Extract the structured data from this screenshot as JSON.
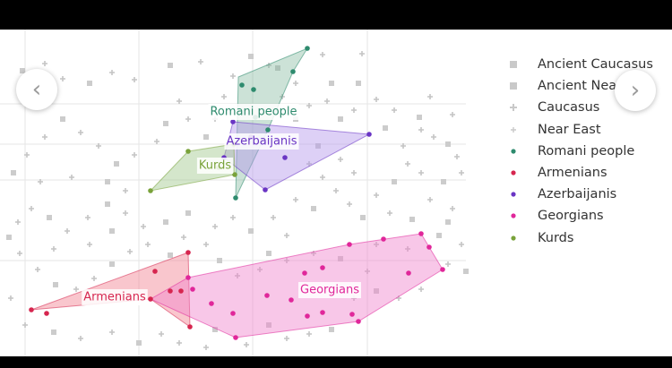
{
  "nav": {
    "prev_icon": "‹",
    "next_icon": "›"
  },
  "legend": [
    {
      "label": "Ancient Caucasus",
      "marker": "square",
      "color": "#c9c9c9"
    },
    {
      "label": "Ancient Near East",
      "marker": "square",
      "color": "#c9c9c9"
    },
    {
      "label": "Caucasus",
      "marker": "diamond",
      "color": "#c9c9c9"
    },
    {
      "label": "Near East",
      "marker": "cross",
      "color": "#c9c9c9"
    },
    {
      "label": "Romani people",
      "marker": "circle",
      "color": "#2e8b6e"
    },
    {
      "label": "Armenians",
      "marker": "circle",
      "color": "#d6264f"
    },
    {
      "label": "Azerbaijanis",
      "marker": "circle",
      "color": "#6a35c4"
    },
    {
      "label": "Georgians",
      "marker": "circle",
      "color": "#e0279a"
    },
    {
      "label": "Kurds",
      "marker": "circle",
      "color": "#79a23a"
    }
  ],
  "chart_data": {
    "type": "scatter",
    "title": "",
    "xlabel": "",
    "ylabel": "",
    "xlim": [
      0,
      520
    ],
    "ylim": [
      0,
      365
    ],
    "grid": true,
    "legend_position": "right",
    "groups": [
      {
        "name": "Romani people",
        "label": "Romani people",
        "color": "#2e8b6e",
        "fill": "rgba(120,180,150,0.38)",
        "hull": [
          [
            343,
            21
          ],
          [
            327,
            47
          ],
          [
            299,
            112
          ],
          [
            263,
            188
          ],
          [
            266,
            53
          ]
        ],
        "points": [
          [
            343,
            21
          ],
          [
            327,
            47
          ],
          [
            283,
            67
          ],
          [
            270,
            62
          ],
          [
            299,
            112
          ],
          [
            285,
            98
          ],
          [
            263,
            188
          ]
        ],
        "label_at": [
          283,
          92
        ]
      },
      {
        "name": "Azerbaijanis",
        "label": "Azerbaijanis",
        "color": "#6a35c4",
        "fill": "rgba(180,150,235,0.45)",
        "hull": [
          [
            260,
            103
          ],
          [
            412,
            117
          ],
          [
            296,
            179
          ],
          [
            250,
            143
          ]
        ],
        "points": [
          [
            260,
            103
          ],
          [
            412,
            117
          ],
          [
            296,
            179
          ],
          [
            318,
            143
          ],
          [
            280,
            120
          ],
          [
            250,
            143
          ]
        ],
        "label_at": [
          292,
          125
        ]
      },
      {
        "name": "Kurds",
        "label": "Kurds",
        "color": "#79a23a",
        "fill": "rgba(160,200,140,0.45)",
        "hull": [
          [
            168,
            180
          ],
          [
            210,
            136
          ],
          [
            261,
            128
          ],
          [
            262,
            162
          ]
        ],
        "points": [
          [
            168,
            180
          ],
          [
            210,
            136
          ],
          [
            261,
            128
          ],
          [
            262,
            162
          ],
          [
            244,
            154
          ]
        ],
        "label_at": [
          240,
          152
        ]
      },
      {
        "name": "Armenians",
        "label": "Armenians",
        "color": "#d6264f",
        "fill": "rgba(240,120,135,0.42)",
        "hull": [
          [
            35,
            313
          ],
          [
            210,
            249
          ],
          [
            212,
            332
          ],
          [
            168,
            301
          ]
        ],
        "points": [
          [
            35,
            313
          ],
          [
            52,
            317
          ],
          [
            210,
            249
          ],
          [
            212,
            332
          ],
          [
            168,
            301
          ],
          [
            173,
            270
          ],
          [
            190,
            292
          ],
          [
            202,
            292
          ]
        ],
        "label_at": [
          128,
          299
        ]
      },
      {
        "name": "Georgians",
        "label": "Georgians",
        "color": "#e0279a",
        "fill": "rgba(240,130,205,0.45)",
        "hull": [
          [
            168,
            301
          ],
          [
            210,
            277
          ],
          [
            390,
            240
          ],
          [
            470,
            228
          ],
          [
            494,
            268
          ],
          [
            400,
            326
          ],
          [
            263,
            344
          ]
        ],
        "points": [
          [
            470,
            228
          ],
          [
            479,
            243
          ],
          [
            494,
            268
          ],
          [
            456,
            272
          ],
          [
            400,
            326
          ],
          [
            393,
            318
          ],
          [
            360,
            316
          ],
          [
            343,
            320
          ],
          [
            325,
            302
          ],
          [
            298,
            297
          ],
          [
            263,
            344
          ],
          [
            260,
            317
          ],
          [
            236,
            306
          ],
          [
            215,
            290
          ],
          [
            210,
            277
          ],
          [
            340,
            272
          ],
          [
            360,
            266
          ],
          [
            390,
            240
          ],
          [
            428,
            234
          ]
        ],
        "label_at": [
          368,
          291
        ]
      }
    ],
    "background_points": [
      [
        25,
        46
      ],
      [
        50,
        38
      ],
      [
        70,
        55
      ],
      [
        100,
        60
      ],
      [
        125,
        48
      ],
      [
        150,
        56
      ],
      [
        190,
        40
      ],
      [
        224,
        36
      ],
      [
        260,
        52
      ],
      [
        310,
        43
      ],
      [
        360,
        28
      ],
      [
        404,
        27
      ],
      [
        400,
        60
      ],
      [
        420,
        78
      ],
      [
        440,
        90
      ],
      [
        468,
        98
      ],
      [
        470,
        112
      ],
      [
        484,
        120
      ],
      [
        500,
        128
      ],
      [
        510,
        142
      ],
      [
        515,
        160
      ],
      [
        495,
        170
      ],
      [
        470,
        160
      ],
      [
        455,
        150
      ],
      [
        440,
        170
      ],
      [
        420,
        185
      ],
      [
        435,
        205
      ],
      [
        460,
        212
      ],
      [
        480,
        190
      ],
      [
        505,
        200
      ],
      [
        500,
        215
      ],
      [
        515,
        240
      ],
      [
        500,
        262
      ],
      [
        520,
        270
      ],
      [
        470,
        290
      ],
      [
        445,
        300
      ],
      [
        420,
        292
      ],
      [
        395,
        300
      ],
      [
        410,
        270
      ],
      [
        380,
        256
      ],
      [
        350,
        250
      ],
      [
        320,
        258
      ],
      [
        300,
        250
      ],
      [
        290,
        268
      ],
      [
        265,
        275
      ],
      [
        245,
        258
      ],
      [
        230,
        240
      ],
      [
        205,
        232
      ],
      [
        185,
        215
      ],
      [
        160,
        220
      ],
      [
        140,
        205
      ],
      [
        120,
        195
      ],
      [
        98,
        210
      ],
      [
        75,
        225
      ],
      [
        55,
        210
      ],
      [
        35,
        200
      ],
      [
        20,
        215
      ],
      [
        10,
        232
      ],
      [
        22,
        250
      ],
      [
        42,
        268
      ],
      [
        62,
        285
      ],
      [
        85,
        290
      ],
      [
        105,
        278
      ],
      [
        125,
        262
      ],
      [
        145,
        248
      ],
      [
        165,
        240
      ],
      [
        190,
        252
      ],
      [
        12,
        300
      ],
      [
        28,
        330
      ],
      [
        60,
        338
      ],
      [
        90,
        345
      ],
      [
        125,
        338
      ],
      [
        155,
        350
      ],
      [
        180,
        340
      ],
      [
        200,
        350
      ],
      [
        240,
        335
      ],
      [
        230,
        355
      ],
      [
        275,
        352
      ],
      [
        300,
        330
      ],
      [
        320,
        345
      ],
      [
        345,
        340
      ],
      [
        370,
        335
      ],
      [
        305,
        210
      ],
      [
        330,
        190
      ],
      [
        350,
        200
      ],
      [
        375,
        180
      ],
      [
        390,
        195
      ],
      [
        405,
        210
      ],
      [
        360,
        165
      ],
      [
        345,
        150
      ],
      [
        355,
        130
      ],
      [
        380,
        145
      ],
      [
        395,
        160
      ],
      [
        330,
        100
      ],
      [
        315,
        75
      ],
      [
        300,
        40
      ],
      [
        280,
        30
      ],
      [
        250,
        75
      ],
      [
        240,
        100
      ],
      [
        230,
        120
      ],
      [
        210,
        100
      ],
      [
        200,
        80
      ],
      [
        185,
        105
      ],
      [
        175,
        125
      ],
      [
        150,
        140
      ],
      [
        130,
        150
      ],
      [
        110,
        130
      ],
      [
        90,
        115
      ],
      [
        70,
        100
      ],
      [
        50,
        120
      ],
      [
        30,
        140
      ],
      [
        15,
        160
      ],
      [
        45,
        170
      ],
      [
        80,
        165
      ],
      [
        120,
        170
      ],
      [
        140,
        180
      ],
      [
        450,
        130
      ],
      [
        430,
        110
      ],
      [
        480,
        75
      ],
      [
        505,
        95
      ],
      [
        380,
        100
      ],
      [
        365,
        80
      ],
      [
        320,
        230
      ],
      [
        280,
        225
      ],
      [
        260,
        210
      ],
      [
        240,
        220
      ],
      [
        210,
        205
      ],
      [
        420,
        240
      ],
      [
        455,
        245
      ],
      [
        490,
        230
      ],
      [
        60,
        245
      ],
      [
        100,
        240
      ],
      [
        125,
        225
      ],
      [
        330,
        60
      ],
      [
        345,
        85
      ],
      [
        370,
        60
      ],
      [
        395,
        90
      ]
    ]
  }
}
